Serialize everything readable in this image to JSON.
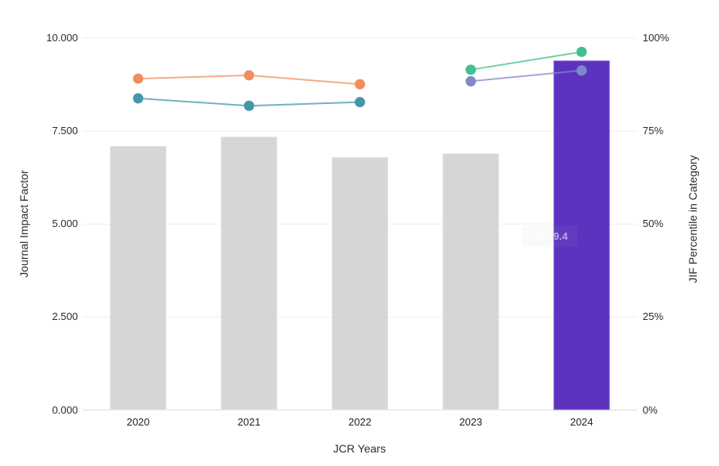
{
  "chart_data": {
    "type": "bar+line",
    "categories": [
      "2020",
      "2021",
      "2022",
      "2023",
      "2024"
    ],
    "bar_series": {
      "name": "Journal Impact Factor",
      "values": [
        7.1,
        7.35,
        6.8,
        6.9,
        9.4
      ],
      "colors": [
        "#d6d6d6",
        "#d6d6d6",
        "#d6d6d6",
        "#d6d6d6",
        "#5c33bf"
      ]
    },
    "line_series": [
      {
        "name": "percentile-orange",
        "color": "#f08e5e",
        "x": [
          "2020",
          "2021",
          "2022"
        ],
        "values": [
          89.1,
          90.0,
          87.6
        ]
      },
      {
        "name": "percentile-teal",
        "color": "#4397a9",
        "x": [
          "2020",
          "2021",
          "2022"
        ],
        "values": [
          83.8,
          81.8,
          82.8
        ]
      },
      {
        "name": "percentile-green",
        "color": "#41bf90",
        "x": [
          "2023",
          "2024"
        ],
        "values": [
          91.5,
          96.3
        ]
      },
      {
        "name": "percentile-slate",
        "color": "#8088cc",
        "x": [
          "2023",
          "2024"
        ],
        "values": [
          88.4,
          91.3
        ]
      }
    ],
    "xlabel": "JCR Years",
    "ylabel_left": "Journal Impact Factor",
    "ylabel_right": "JIF Percentile in Category",
    "y_left": {
      "min": 0,
      "max": 10,
      "ticks": [
        "0.000",
        "2.500",
        "5.000",
        "7.500",
        "10.000"
      ]
    },
    "y_right": {
      "min": 0,
      "max": 100,
      "ticks": [
        "0%",
        "25%",
        "50%",
        "75%",
        "100%"
      ]
    },
    "grid": true,
    "legend": false,
    "gridline_color": "#ededed",
    "baseline_color": "#dcdcdc"
  },
  "tooltip": {
    "text": "JIF: 9.4"
  }
}
